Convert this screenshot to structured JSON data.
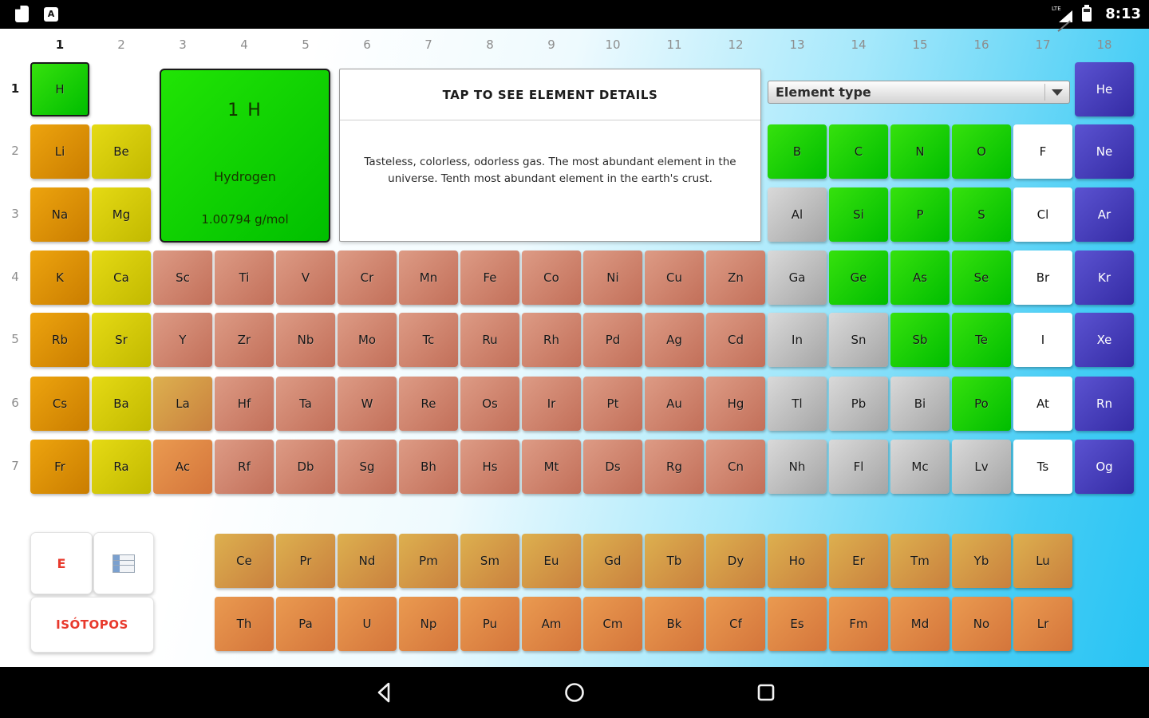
{
  "status_bar": {
    "time": "8:13",
    "signal_label": "LTE",
    "a_badge": "A",
    "icons": [
      "file-icon",
      "a-box-icon",
      "signal-icon",
      "battery-icon"
    ]
  },
  "table": {
    "column_headers": [
      "1",
      "2",
      "3",
      "4",
      "5",
      "6",
      "7",
      "8",
      "9",
      "10",
      "11",
      "12",
      "13",
      "14",
      "15",
      "16",
      "17",
      "18"
    ],
    "row_headers": [
      "1",
      "2",
      "3",
      "4",
      "5",
      "6",
      "7"
    ],
    "rows": [
      [
        [
          "H",
          1,
          "nonmetal",
          true
        ],
        [
          "He",
          18,
          "noble"
        ]
      ],
      [
        [
          "Li",
          1,
          "alkali"
        ],
        [
          "Be",
          2,
          "alkaline"
        ],
        [
          "B",
          13,
          "nonmetal"
        ],
        [
          "C",
          14,
          "nonmetal"
        ],
        [
          "N",
          15,
          "nonmetal"
        ],
        [
          "O",
          16,
          "nonmetal"
        ],
        [
          "F",
          17,
          "halogen"
        ],
        [
          "Ne",
          18,
          "noble"
        ]
      ],
      [
        [
          "Na",
          1,
          "alkali"
        ],
        [
          "Mg",
          2,
          "alkaline"
        ],
        [
          "Al",
          13,
          "postmetal"
        ],
        [
          "Si",
          14,
          "nonmetal"
        ],
        [
          "P",
          15,
          "nonmetal"
        ],
        [
          "S",
          16,
          "nonmetal"
        ],
        [
          "Cl",
          17,
          "halogen"
        ],
        [
          "Ar",
          18,
          "noble"
        ]
      ],
      [
        [
          "K",
          1,
          "alkali"
        ],
        [
          "Ca",
          2,
          "alkaline"
        ],
        [
          "Sc",
          3,
          "transition"
        ],
        [
          "Ti",
          4,
          "transition"
        ],
        [
          "V",
          5,
          "transition"
        ],
        [
          "Cr",
          6,
          "transition"
        ],
        [
          "Mn",
          7,
          "transition"
        ],
        [
          "Fe",
          8,
          "transition"
        ],
        [
          "Co",
          9,
          "transition"
        ],
        [
          "Ni",
          10,
          "transition"
        ],
        [
          "Cu",
          11,
          "transition"
        ],
        [
          "Zn",
          12,
          "transition"
        ],
        [
          "Ga",
          13,
          "postmetal"
        ],
        [
          "Ge",
          14,
          "nonmetal"
        ],
        [
          "As",
          15,
          "nonmetal"
        ],
        [
          "Se",
          16,
          "nonmetal"
        ],
        [
          "Br",
          17,
          "halogen"
        ],
        [
          "Kr",
          18,
          "noble"
        ]
      ],
      [
        [
          "Rb",
          1,
          "alkali"
        ],
        [
          "Sr",
          2,
          "alkaline"
        ],
        [
          "Y",
          3,
          "transition"
        ],
        [
          "Zr",
          4,
          "transition"
        ],
        [
          "Nb",
          5,
          "transition"
        ],
        [
          "Mo",
          6,
          "transition"
        ],
        [
          "Tc",
          7,
          "transition"
        ],
        [
          "Ru",
          8,
          "transition"
        ],
        [
          "Rh",
          9,
          "transition"
        ],
        [
          "Pd",
          10,
          "transition"
        ],
        [
          "Ag",
          11,
          "transition"
        ],
        [
          "Cd",
          12,
          "transition"
        ],
        [
          "In",
          13,
          "postmetal"
        ],
        [
          "Sn",
          14,
          "postmetal"
        ],
        [
          "Sb",
          15,
          "nonmetal"
        ],
        [
          "Te",
          16,
          "nonmetal"
        ],
        [
          "I",
          17,
          "halogen"
        ],
        [
          "Xe",
          18,
          "noble"
        ]
      ],
      [
        [
          "Cs",
          1,
          "alkali"
        ],
        [
          "Ba",
          2,
          "alkaline"
        ],
        [
          "La",
          3,
          "lanthanide"
        ],
        [
          "Hf",
          4,
          "transition"
        ],
        [
          "Ta",
          5,
          "transition"
        ],
        [
          "W",
          6,
          "transition"
        ],
        [
          "Re",
          7,
          "transition"
        ],
        [
          "Os",
          8,
          "transition"
        ],
        [
          "Ir",
          9,
          "transition"
        ],
        [
          "Pt",
          10,
          "transition"
        ],
        [
          "Au",
          11,
          "transition"
        ],
        [
          "Hg",
          12,
          "transition"
        ],
        [
          "Tl",
          13,
          "postmetal"
        ],
        [
          "Pb",
          14,
          "postmetal"
        ],
        [
          "Bi",
          15,
          "postmetal"
        ],
        [
          "Po",
          16,
          "nonmetal"
        ],
        [
          "At",
          17,
          "halogen"
        ],
        [
          "Rn",
          18,
          "noble"
        ]
      ],
      [
        [
          "Fr",
          1,
          "alkali"
        ],
        [
          "Ra",
          2,
          "alkaline"
        ],
        [
          "Ac",
          3,
          "actinide"
        ],
        [
          "Rf",
          4,
          "transition"
        ],
        [
          "Db",
          5,
          "transition"
        ],
        [
          "Sg",
          6,
          "transition"
        ],
        [
          "Bh",
          7,
          "transition"
        ],
        [
          "Hs",
          8,
          "transition"
        ],
        [
          "Mt",
          9,
          "transition"
        ],
        [
          "Ds",
          10,
          "transition"
        ],
        [
          "Rg",
          11,
          "transition"
        ],
        [
          "Cn",
          12,
          "transition"
        ],
        [
          "Nh",
          13,
          "postmetal"
        ],
        [
          "Fl",
          14,
          "postmetal"
        ],
        [
          "Mc",
          15,
          "postmetal"
        ],
        [
          "Lv",
          16,
          "postmetal"
        ],
        [
          "Ts",
          17,
          "halogen"
        ],
        [
          "Og",
          18,
          "noble"
        ]
      ]
    ],
    "lanthanides": [
      "Ce",
      "Pr",
      "Nd",
      "Pm",
      "Sm",
      "Eu",
      "Gd",
      "Tb",
      "Dy",
      "Ho",
      "Er",
      "Tm",
      "Yb",
      "Lu"
    ],
    "actinides": [
      "Th",
      "Pa",
      "U",
      "Np",
      "Pu",
      "Am",
      "Cm",
      "Bk",
      "Cf",
      "Es",
      "Fm",
      "Md",
      "No",
      "Lr"
    ]
  },
  "detail_card": {
    "number_symbol": "1 H",
    "name": "Hydrogen",
    "mass": "1.00794 g/mol"
  },
  "details_panel": {
    "title": "TAP TO SEE ELEMENT DETAILS",
    "body": "Tasteless, colorless, odorless gas. The most abundant element in the universe. Tenth most abundant element in the earth's crust."
  },
  "element_type_dropdown": {
    "selected": "Element type"
  },
  "side_buttons": {
    "electron_label": "E",
    "isotopes_label": "ISÓTOPOS"
  },
  "type_colors": {
    "nonmetal": "#00bd00",
    "alkali": "#ca7d00",
    "alkaline": "#c2b900",
    "transition": "#c26f59",
    "postmetal": "#a5a5a5",
    "halogen": "#ffffff",
    "noble": "#342ba4",
    "lanthanide": "#c9803e",
    "actinide": "#d4753b",
    "background_cyan": "#27c3f3",
    "accent_red": "#e8392c"
  },
  "nav_bar": {
    "icons": [
      "back-icon",
      "home-icon",
      "recents-icon"
    ]
  }
}
